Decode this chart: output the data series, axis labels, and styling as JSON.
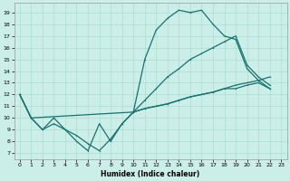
{
  "xlabel": "Humidex (Indice chaleur)",
  "bg_color": "#cceee8",
  "grid_color": "#aaddcc",
  "line_color": "#1a7070",
  "xlim": [
    -0.5,
    23.5
  ],
  "ylim": [
    6.5,
    19.8
  ],
  "xticks": [
    0,
    1,
    2,
    3,
    4,
    5,
    6,
    7,
    8,
    9,
    10,
    11,
    12,
    13,
    14,
    15,
    16,
    17,
    18,
    19,
    20,
    21,
    22,
    23
  ],
  "yticks": [
    7,
    8,
    9,
    10,
    11,
    12,
    13,
    14,
    15,
    16,
    17,
    18,
    19
  ],
  "line1_x": [
    0,
    1,
    2,
    3,
    4,
    5,
    6,
    7,
    8,
    9,
    10,
    11,
    12,
    13,
    14,
    15,
    16,
    17,
    18,
    19,
    20,
    21,
    22
  ],
  "line1_y": [
    12,
    10,
    9,
    10,
    9,
    8,
    7.2,
    9.5,
    8,
    9.5,
    10.5,
    15,
    17.5,
    18.5,
    19.2,
    19.0,
    19.2,
    18,
    17,
    16.7,
    14.2,
    13.2,
    12.5
  ],
  "line2_x": [
    0,
    1,
    2,
    3,
    4,
    5,
    6,
    7,
    8,
    9,
    10,
    11,
    12,
    13,
    14,
    15,
    16,
    17,
    18,
    19,
    20,
    21,
    22
  ],
  "line2_y": [
    12,
    10,
    9.0,
    9.5,
    9.0,
    8.5,
    7.8,
    7.2,
    8.2,
    9.5,
    10.5,
    10.8,
    11.0,
    11.2,
    11.5,
    11.8,
    12.0,
    12.2,
    12.5,
    12.5,
    12.8,
    13.0,
    12.5
  ],
  "line3_x": [
    0,
    1,
    10,
    11,
    12,
    13,
    14,
    15,
    16,
    17,
    18,
    19,
    20,
    21,
    22
  ],
  "line3_y": [
    12,
    10,
    10.5,
    10.8,
    11.0,
    11.2,
    11.5,
    11.8,
    12.0,
    12.2,
    12.5,
    12.8,
    13.0,
    13.2,
    13.5
  ],
  "line4_x": [
    10,
    11,
    12,
    13,
    14,
    15,
    16,
    17,
    18,
    19,
    20,
    21,
    22
  ],
  "line4_y": [
    10.5,
    11.5,
    12.5,
    13.5,
    14.2,
    15.0,
    15.5,
    16.0,
    16.5,
    17.0,
    14.5,
    13.5,
    12.8
  ]
}
